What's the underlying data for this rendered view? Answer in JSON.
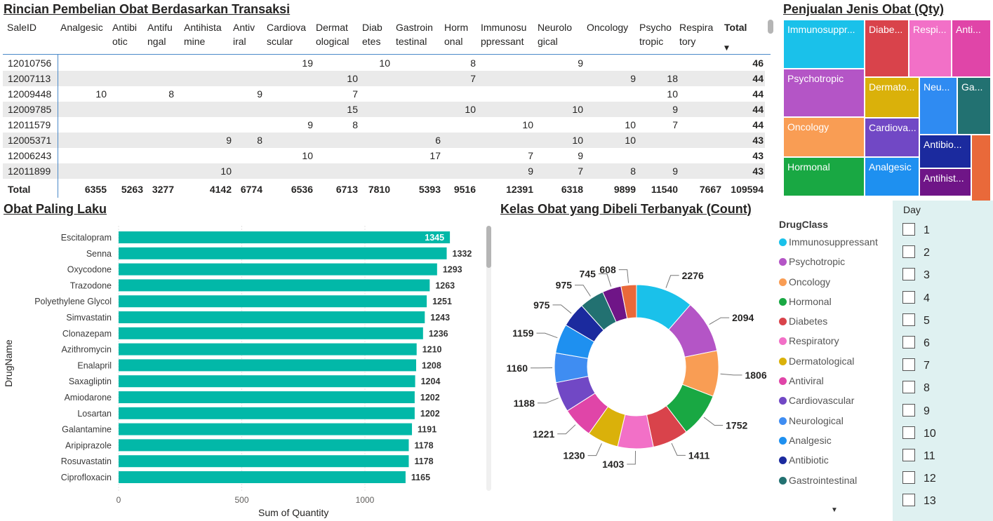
{
  "matrix": {
    "title": "Rincian Pembelian Obat Berdasarkan Transaksi",
    "headers": [
      "SaleID",
      "Analgesic",
      "Antibi\notic",
      "Antifu\nngal",
      "Antihista\nmine",
      "Antiv\niral",
      "Cardiova\nscular",
      "Dermat\nological",
      "Diab\netes",
      "Gastroin\ntestinal",
      "Horm\nonal",
      "Immunosu\nppressant",
      "Neurolo\ngical",
      "Oncology",
      "Psycho\ntropic",
      "Respira\ntory",
      "Total"
    ],
    "rows": [
      {
        "id": "12010756",
        "vals": [
          "",
          "",
          "",
          "",
          "",
          "",
          "19",
          "",
          "10",
          "",
          "8",
          "",
          "9",
          "",
          "",
          ""
        ],
        "total": "46"
      },
      {
        "id": "12007113",
        "vals": [
          "",
          "",
          "",
          "",
          "",
          "",
          "",
          "10",
          "",
          "",
          "7",
          "",
          "",
          "9",
          "18",
          ""
        ],
        "total": "44"
      },
      {
        "id": "12009448",
        "vals": [
          "",
          "10",
          "",
          "8",
          "",
          "9",
          "",
          "7",
          "",
          "",
          "",
          "",
          "",
          "",
          "10",
          ""
        ],
        "total": "44"
      },
      {
        "id": "12009785",
        "vals": [
          "",
          "",
          "",
          "",
          "",
          "",
          "",
          "15",
          "",
          "",
          "10",
          "",
          "10",
          "",
          "9",
          ""
        ],
        "total": "44"
      },
      {
        "id": "12011579",
        "vals": [
          "",
          "",
          "",
          "",
          "",
          "",
          "9",
          "8",
          "",
          "",
          "",
          "10",
          "",
          "10",
          "7",
          ""
        ],
        "total": "44"
      },
      {
        "id": "12005371",
        "vals": [
          "",
          "",
          "",
          "",
          "9",
          "8",
          "",
          "",
          "",
          "6",
          "",
          "",
          "10",
          "10",
          "",
          ""
        ],
        "total": "43"
      },
      {
        "id": "12006243",
        "vals": [
          "",
          "",
          "",
          "",
          "",
          "",
          "10",
          "",
          "",
          "17",
          "",
          "7",
          "9",
          "",
          "",
          ""
        ],
        "total": "43"
      },
      {
        "id": "12011899",
        "vals": [
          "",
          "",
          "",
          "",
          "10",
          "",
          "",
          "",
          "",
          "",
          "",
          "9",
          "7",
          "8",
          "9",
          ""
        ],
        "total": "43"
      }
    ],
    "total_label": "Total",
    "totals": [
      "6355",
      "5263",
      "3277",
      "4142",
      "6774",
      "6536",
      "6713",
      "7810",
      "5393",
      "9516",
      "12391",
      "6318",
      "9899",
      "11540",
      "7667"
    ],
    "grand_total": "109594"
  },
  "treemap": {
    "title": "Penjualan Jenis Obat (Qty)",
    "tiles": [
      {
        "label": "Immunosuppr...",
        "color": "#1ac1ea"
      },
      {
        "label": "Diabe...",
        "color": "#d9434b"
      },
      {
        "label": "Respi...",
        "color": "#f270c7"
      },
      {
        "label": "Anti...",
        "color": "#e045a8"
      },
      {
        "label": "Psychotropic",
        "color": "#b455c6"
      },
      {
        "label": "Dermato...",
        "color": "#dab10a"
      },
      {
        "label": "Neu...",
        "color": "#2f8bf2"
      },
      {
        "label": "Ga...",
        "color": "#227171"
      },
      {
        "label": "Oncology",
        "color": "#f99d54"
      },
      {
        "label": "Cardiova...",
        "color": "#7148c5"
      },
      {
        "label": "Antibio...",
        "color": "#1b2a9e"
      },
      {
        "label": "",
        "color": "#e9693a"
      },
      {
        "label": "Hormonal",
        "color": "#19a843"
      },
      {
        "label": "Analgesic",
        "color": "#1e90f0"
      },
      {
        "label": "Antihist...",
        "color": "#6f1587"
      }
    ]
  },
  "bar_chart": {
    "title": "Obat Paling Laku",
    "bar_color": "#02b8a8"
  },
  "donut_chart": {
    "title": "Kelas Obat yang Dibeli Terbanyak (Count)"
  },
  "legend": {
    "title": "DrugClass",
    "items": [
      {
        "label": "Immunosuppressant",
        "color": "#1ac1ea"
      },
      {
        "label": "Psychotropic",
        "color": "#b455c6"
      },
      {
        "label": "Oncology",
        "color": "#f99d54"
      },
      {
        "label": "Hormonal",
        "color": "#19a843"
      },
      {
        "label": "Diabetes",
        "color": "#d9434b"
      },
      {
        "label": "Respiratory",
        "color": "#f270c7"
      },
      {
        "label": "Dermatological",
        "color": "#dab10a"
      },
      {
        "label": "Antiviral",
        "color": "#e045a8"
      },
      {
        "label": "Cardiovascular",
        "color": "#7148c5"
      },
      {
        "label": "Neurological",
        "color": "#3f8df2"
      },
      {
        "label": "Analgesic",
        "color": "#1e90f0"
      },
      {
        "label": "Antibiotic",
        "color": "#1b2a9e"
      },
      {
        "label": "Gastrointestinal",
        "color": "#227171"
      }
    ],
    "more_icon": "caret-down-icon"
  },
  "slicer": {
    "title": "Day",
    "items": [
      "1",
      "2",
      "3",
      "4",
      "5",
      "6",
      "7",
      "8",
      "9",
      "10",
      "11",
      "12",
      "13"
    ]
  },
  "chart_data": [
    {
      "type": "bar",
      "orientation": "horizontal",
      "title": "Obat Paling Laku",
      "xlabel": "Sum of Quantity",
      "ylabel": "DrugName",
      "xlim": [
        0,
        1400
      ],
      "xticks": [
        "0",
        "500",
        "1000"
      ],
      "grid": true,
      "categories": [
        "Escitalopram",
        "Senna",
        "Oxycodone",
        "Trazodone",
        "Polyethylene Glycol",
        "Simvastatin",
        "Clonazepam",
        "Azithromycin",
        "Enalapril",
        "Saxagliptin",
        "Amiodarone",
        "Losartan",
        "Galantamine",
        "Aripiprazole",
        "Rosuvastatin",
        "Ciprofloxacin"
      ],
      "values": [
        1345,
        1332,
        1293,
        1263,
        1251,
        1243,
        1236,
        1210,
        1208,
        1204,
        1202,
        1202,
        1191,
        1178,
        1178,
        1165
      ]
    },
    {
      "type": "pie",
      "variant": "donut",
      "title": "Kelas Obat yang Dibeli Terbanyak (Count)",
      "legend_title": "DrugClass",
      "legend_position": "right",
      "categories": [
        "Immunosuppressant",
        "Psychotropic",
        "Oncology",
        "Hormonal",
        "Diabetes",
        "Respiratory",
        "Dermatological",
        "Antiviral",
        "Cardiovascular",
        "Neurological",
        "Analgesic",
        "Antibiotic",
        "Gastrointestinal",
        "Antifungal",
        "Antihistamine"
      ],
      "values": [
        2276,
        2094,
        1806,
        1752,
        1411,
        1403,
        1230,
        1221,
        1188,
        1160,
        1159,
        975,
        975,
        745,
        608
      ],
      "colors": [
        "#1ac1ea",
        "#b455c6",
        "#f99d54",
        "#19a843",
        "#d9434b",
        "#f270c7",
        "#dab10a",
        "#e045a8",
        "#7148c5",
        "#3f8df2",
        "#1e90f0",
        "#1b2a9e",
        "#227171",
        "#6f1587",
        "#e9693a"
      ]
    }
  ]
}
